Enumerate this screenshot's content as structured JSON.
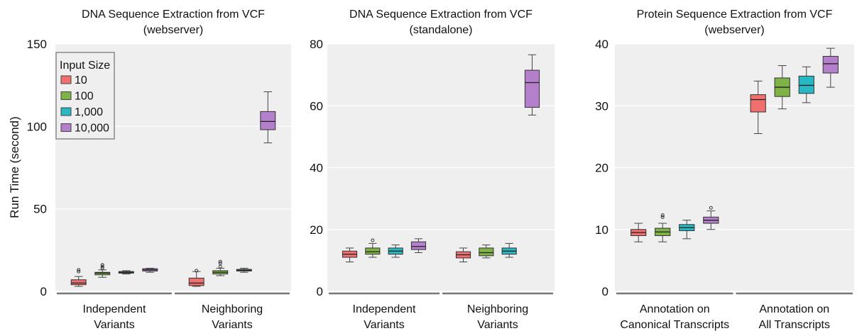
{
  "y_axis_label": "Run Time (second)",
  "legend": {
    "title": "Input Size",
    "items": [
      {
        "label": "10",
        "color": "#f07070"
      },
      {
        "label": "100",
        "color": "#7fb347"
      },
      {
        "label": "1,000",
        "color": "#27b8c4"
      },
      {
        "label": "10,000",
        "color": "#b47fcb"
      }
    ]
  },
  "chart_data": [
    {
      "type": "box",
      "title": "DNA Sequence Extraction from VCF",
      "subtitle": "(webserver)",
      "ylabel": "Run Time (second)",
      "ylim": [
        0,
        150
      ],
      "yticks": [
        0,
        50,
        100,
        150
      ],
      "grid": true,
      "legend_position": "top-left",
      "groups": [
        {
          "label_line1": "Independent",
          "label_line2": "Variants"
        },
        {
          "label_line1": "Neighboring",
          "label_line2": "Variants"
        }
      ],
      "series": [
        {
          "name": "10",
          "boxes": [
            {
              "min": 3,
              "q1": 4,
              "median": 5,
              "q3": 7,
              "max": 9,
              "outliers": [
                12,
                13
              ]
            },
            {
              "min": 3,
              "q1": 3.5,
              "median": 5,
              "q3": 8,
              "max": 12,
              "outliers": [
                12.5
              ]
            }
          ]
        },
        {
          "name": "100",
          "boxes": [
            {
              "min": 8.5,
              "q1": 10,
              "median": 11,
              "q3": 11.5,
              "max": 13,
              "outliers": [
                14,
                15,
                16
              ]
            },
            {
              "min": 9.5,
              "q1": 10.5,
              "median": 11.5,
              "q3": 12.5,
              "max": 14,
              "outliers": [
                15,
                17,
                18
              ]
            }
          ]
        },
        {
          "name": "1,000",
          "boxes": [
            {
              "min": 10.5,
              "q1": 11,
              "median": 11.5,
              "q3": 12,
              "max": 12.5,
              "outliers": []
            },
            {
              "min": 11.5,
              "q1": 12.3,
              "median": 12.8,
              "q3": 13.3,
              "max": 14,
              "outliers": []
            }
          ]
        },
        {
          "name": "10,000",
          "boxes": [
            {
              "min": 11.5,
              "q1": 12.3,
              "median": 13,
              "q3": 13.7,
              "max": 14,
              "outliers": []
            },
            {
              "min": 90,
              "q1": 98,
              "median": 103,
              "q3": 109,
              "max": 121,
              "outliers": []
            }
          ]
        }
      ]
    },
    {
      "type": "box",
      "title": "DNA Sequence Extraction from VCF",
      "subtitle": "(standalone)",
      "ylim": [
        0,
        80
      ],
      "yticks": [
        0,
        20,
        40,
        60,
        80
      ],
      "grid": true,
      "groups": [
        {
          "label_line1": "Independent",
          "label_line2": "Variants"
        },
        {
          "label_line1": "Neighboring",
          "label_line2": "Variants"
        }
      ],
      "series": [
        {
          "name": "10",
          "boxes": [
            {
              "min": 9.5,
              "q1": 11,
              "median": 12,
              "q3": 13,
              "max": 14,
              "outliers": []
            },
            {
              "min": 9.5,
              "q1": 10.8,
              "median": 11.8,
              "q3": 12.8,
              "max": 14,
              "outliers": []
            }
          ]
        },
        {
          "name": "100",
          "boxes": [
            {
              "min": 11,
              "q1": 12,
              "median": 12.8,
              "q3": 14,
              "max": 15.5,
              "outliers": [
                16.5
              ]
            },
            {
              "min": 10.8,
              "q1": 11.5,
              "median": 12.5,
              "q3": 14,
              "max": 15,
              "outliers": []
            }
          ]
        },
        {
          "name": "1,000",
          "boxes": [
            {
              "min": 11,
              "q1": 12,
              "median": 13,
              "q3": 14,
              "max": 15,
              "outliers": []
            },
            {
              "min": 11,
              "q1": 12,
              "median": 13,
              "q3": 14,
              "max": 15.5,
              "outliers": []
            }
          ]
        },
        {
          "name": "10,000",
          "boxes": [
            {
              "min": 12.5,
              "q1": 13.5,
              "median": 14.5,
              "q3": 16,
              "max": 17,
              "outliers": []
            },
            {
              "min": 57,
              "q1": 59.5,
              "median": 67.5,
              "q3": 71.5,
              "max": 76.5,
              "outliers": []
            }
          ]
        }
      ]
    },
    {
      "type": "box",
      "title": "Protein Sequence Extraction from VCF",
      "subtitle": "(webserver)",
      "ylim": [
        0,
        40
      ],
      "yticks": [
        0,
        10,
        20,
        30,
        40
      ],
      "grid": true,
      "groups": [
        {
          "label_line1": "Annotation on",
          "label_line2": "Canonical Transcripts"
        },
        {
          "label_line1": "Annotation on",
          "label_line2": "All Transcripts"
        }
      ],
      "series": [
        {
          "name": "10",
          "boxes": [
            {
              "min": 8,
              "q1": 9,
              "median": 9.5,
              "q3": 10,
              "max": 11,
              "outliers": []
            },
            {
              "min": 25.5,
              "q1": 29,
              "median": 31,
              "q3": 31.8,
              "max": 34,
              "outliers": []
            }
          ]
        },
        {
          "name": "100",
          "boxes": [
            {
              "min": 8,
              "q1": 9,
              "median": 9.6,
              "q3": 10.2,
              "max": 11,
              "outliers": [
                12,
                12.3
              ]
            },
            {
              "min": 29.5,
              "q1": 31.5,
              "median": 33,
              "q3": 34.5,
              "max": 36.5,
              "outliers": []
            }
          ]
        },
        {
          "name": "1,000",
          "boxes": [
            {
              "min": 8.5,
              "q1": 9.8,
              "median": 10.3,
              "q3": 10.8,
              "max": 11.5,
              "outliers": []
            },
            {
              "min": 30.5,
              "q1": 32,
              "median": 33.3,
              "q3": 34.8,
              "max": 36.3,
              "outliers": []
            }
          ]
        },
        {
          "name": "10,000",
          "boxes": [
            {
              "min": 10,
              "q1": 11,
              "median": 11.5,
              "q3": 12,
              "max": 13,
              "outliers": [
                13.5
              ]
            },
            {
              "min": 33,
              "q1": 35.3,
              "median": 36.8,
              "q3": 38,
              "max": 39.3,
              "outliers": []
            }
          ]
        }
      ]
    }
  ]
}
